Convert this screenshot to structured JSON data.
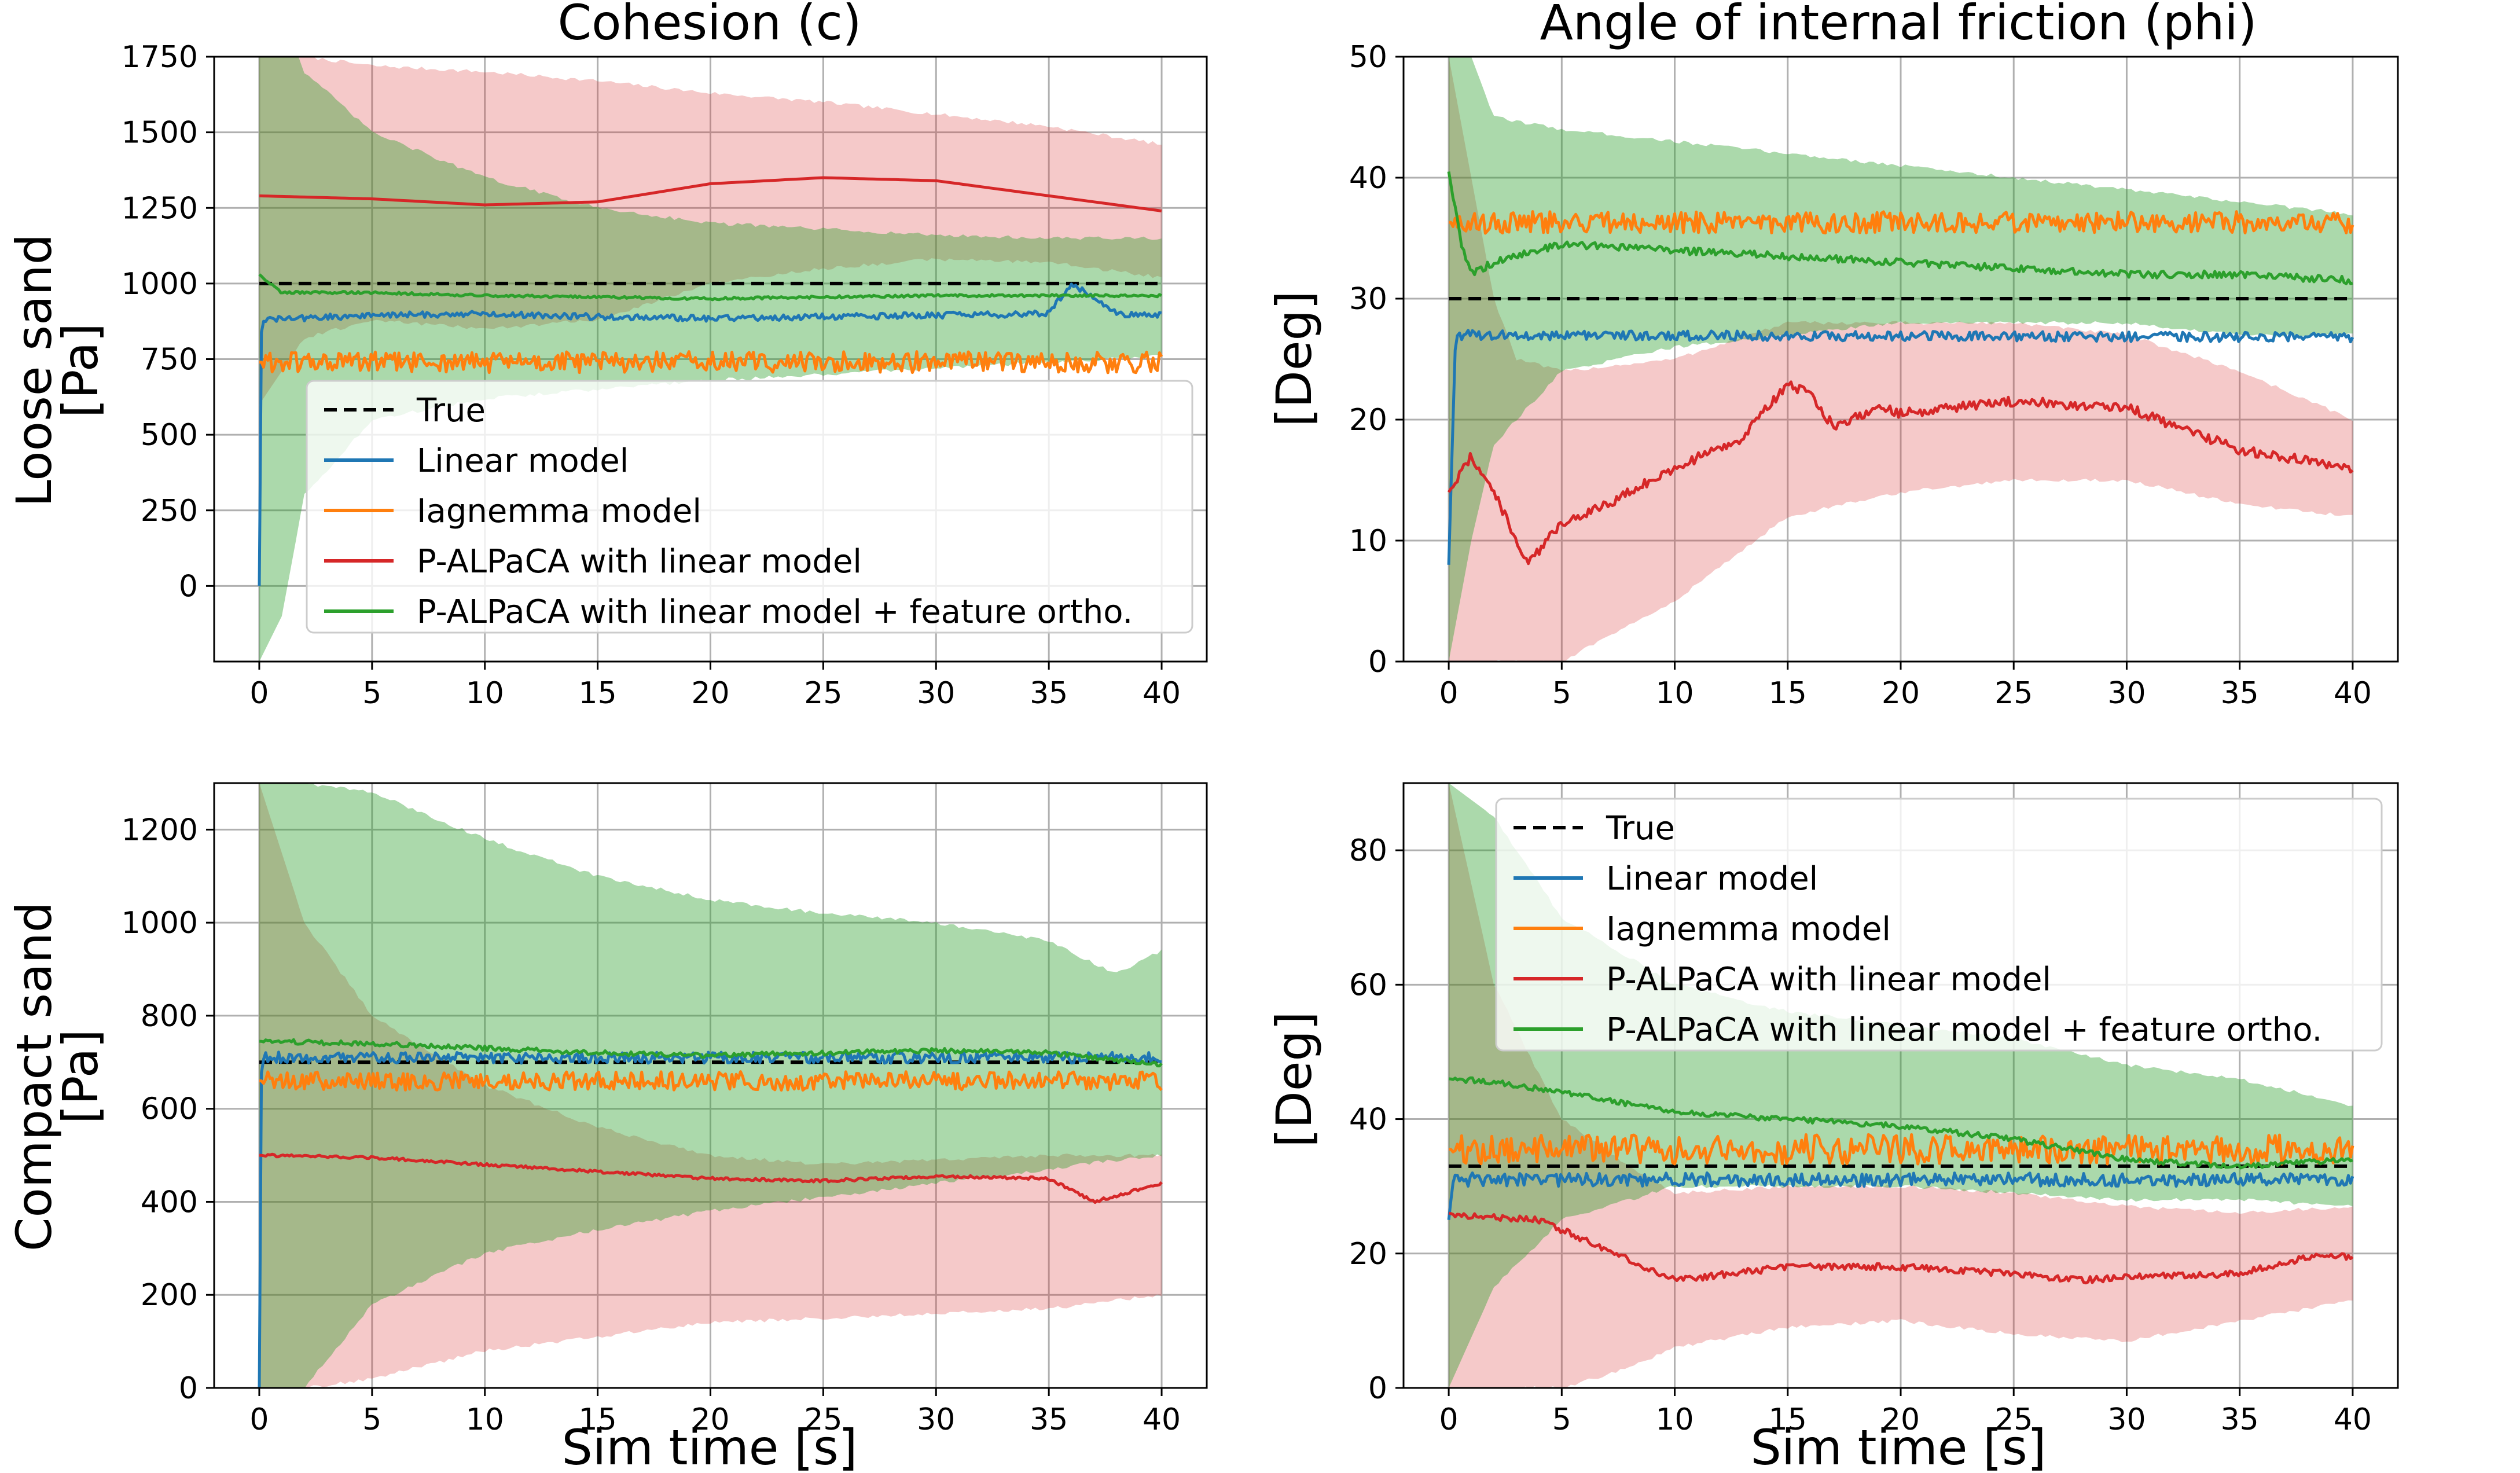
{
  "figure": {
    "xlabel": "Sim time [s]",
    "columns": [
      {
        "title": "Cohesion (c)"
      },
      {
        "title": "Angle of internal friction (phi)"
      }
    ],
    "rows": [
      {
        "label_line1": "Loose sand",
        "label_line2": "[Pa]",
        "right_ylabel": "[Deg]"
      },
      {
        "label_line1": "Compact sand",
        "label_line2": "[Pa]",
        "right_ylabel": "[Deg]"
      }
    ]
  },
  "legend": [
    {
      "label": "True",
      "color": "#000000",
      "dash": true
    },
    {
      "label": "Linear model",
      "color": "#1f77b4",
      "dash": false
    },
    {
      "label": "Iagnemma model",
      "color": "#ff7f0e",
      "dash": false
    },
    {
      "label": "P-ALPaCA with linear model",
      "color": "#d62728",
      "dash": false
    },
    {
      "label": "P-ALPaCA with linear model + feature ortho.",
      "color": "#2ca02c",
      "dash": false
    }
  ],
  "chart_data": [
    {
      "type": "line",
      "title": "Cohesion (c)",
      "ylabel": "Loose sand [Pa]",
      "xlabel": "",
      "xlim": [
        -2,
        42
      ],
      "ylim": [
        -250,
        1750
      ],
      "xticks": [
        0,
        5,
        10,
        15,
        20,
        25,
        30,
        35,
        40
      ],
      "yticks": [
        0,
        250,
        500,
        750,
        1000,
        1250,
        1500,
        1750
      ],
      "grid": true,
      "legend_position": "lower-right",
      "series": [
        {
          "name": "True",
          "x": [
            0,
            40
          ],
          "y": [
            1000,
            1000
          ]
        },
        {
          "name": "Linear model",
          "x": [
            0,
            0.1,
            5,
            10,
            15,
            20,
            25,
            30,
            35,
            36,
            38,
            40
          ],
          "y": [
            0,
            880,
            895,
            900,
            890,
            885,
            890,
            895,
            900,
            1000,
            900,
            895
          ],
          "noise": 10
        },
        {
          "name": "Iagnemma model",
          "x": [
            0,
            40
          ],
          "y": [
            740,
            740
          ],
          "noise": 35
        },
        {
          "name": "P-ALPaCA with linear model",
          "x": [
            0,
            5,
            10,
            15,
            20,
            25,
            30,
            35,
            40
          ],
          "y": [
            1290,
            1280,
            1260,
            1270,
            1330,
            1350,
            1340,
            1290,
            1240
          ],
          "noise": 0
        },
        {
          "name": "P-ALPaCA with linear model + feature ortho.",
          "x": [
            0,
            1,
            5,
            10,
            15,
            20,
            25,
            30,
            35,
            40
          ],
          "y": [
            1030,
            970,
            970,
            960,
            955,
            950,
            955,
            960,
            960,
            960
          ],
          "noise": 4
        }
      ],
      "bands": [
        {
          "name": "P-ALPaCA with linear model",
          "x": [
            0,
            2,
            5,
            10,
            15,
            20,
            25,
            30,
            35,
            40
          ],
          "upper": [
            2000,
            1750,
            1720,
            1700,
            1670,
            1630,
            1600,
            1560,
            1520,
            1460
          ],
          "lower": [
            600,
            820,
            880,
            850,
            880,
            1000,
            1050,
            1080,
            1070,
            1020
          ]
        },
        {
          "name": "P-ALPaCA with linear model + feature ortho.",
          "x": [
            0,
            1,
            2,
            5,
            10,
            15,
            20,
            25,
            30,
            35,
            40
          ],
          "upper": [
            2000,
            1900,
            1700,
            1500,
            1350,
            1250,
            1200,
            1180,
            1160,
            1150,
            1150
          ],
          "lower": [
            -250,
            -100,
            300,
            550,
            620,
            650,
            680,
            700,
            720,
            740,
            760
          ]
        }
      ]
    },
    {
      "type": "line",
      "title": "Angle of internal friction (phi)",
      "ylabel": "[Deg]",
      "xlabel": "",
      "xlim": [
        -2,
        42
      ],
      "ylim": [
        0,
        50
      ],
      "xticks": [
        0,
        5,
        10,
        15,
        20,
        25,
        30,
        35,
        40
      ],
      "yticks": [
        0,
        10,
        20,
        30,
        40,
        50
      ],
      "grid": true,
      "series": [
        {
          "name": "True",
          "x": [
            0,
            40
          ],
          "y": [
            30,
            30
          ]
        },
        {
          "name": "Linear model",
          "x": [
            0,
            0.3,
            1,
            40
          ],
          "y": [
            8,
            27,
            27,
            26.8
          ],
          "noise": 0.4
        },
        {
          "name": "Iagnemma model",
          "x": [
            0,
            40
          ],
          "y": [
            36.3,
            36.3
          ],
          "noise": 0.9
        },
        {
          "name": "P-ALPaCA with linear model",
          "x": [
            0,
            1,
            2,
            3,
            3.5,
            5,
            7,
            10,
            13,
            15,
            16,
            17,
            19,
            20,
            25,
            30,
            35,
            40
          ],
          "y": [
            14,
            17,
            14,
            10,
            8,
            11.5,
            13,
            16,
            18.5,
            23,
            22,
            19.5,
            21,
            20.5,
            21.5,
            21,
            17.5,
            16
          ],
          "noise": 0.4
        },
        {
          "name": "P-ALPaCA with linear model + feature ortho.",
          "x": [
            0,
            0.5,
            1,
            2,
            5,
            10,
            15,
            20,
            25,
            30,
            35,
            40
          ],
          "y": [
            40.5,
            35,
            32,
            33,
            34.5,
            34,
            33.5,
            33,
            32.5,
            32,
            32,
            31.5
          ],
          "noise": 0.3
        }
      ],
      "bands": [
        {
          "name": "P-ALPaCA with linear model",
          "x": [
            0,
            1,
            2,
            3,
            5,
            10,
            15,
            20,
            25,
            30,
            35,
            40
          ],
          "upper": [
            50,
            40,
            30,
            25,
            24,
            25,
            28,
            28,
            28,
            27,
            24,
            20
          ],
          "lower": [
            0,
            0,
            0,
            0,
            0,
            5,
            12,
            14,
            15,
            15,
            13,
            12
          ]
        },
        {
          "name": "P-ALPaCA with linear model + feature ortho.",
          "x": [
            0,
            1,
            2,
            5,
            10,
            15,
            20,
            25,
            30,
            35,
            40
          ],
          "upper": [
            50,
            50,
            45,
            44,
            43,
            42,
            41,
            40,
            39,
            38,
            37
          ],
          "lower": [
            0,
            10,
            18,
            24,
            26,
            27,
            28,
            28,
            28,
            27,
            27
          ]
        }
      ]
    },
    {
      "type": "line",
      "title": "",
      "ylabel": "Compact sand [Pa]",
      "xlabel": "Sim time [s]",
      "xlim": [
        -2,
        42
      ],
      "ylim": [
        0,
        1300
      ],
      "xticks": [
        0,
        5,
        10,
        15,
        20,
        25,
        30,
        35,
        40
      ],
      "yticks": [
        0,
        200,
        400,
        600,
        800,
        1000,
        1200
      ],
      "grid": true,
      "series": [
        {
          "name": "True",
          "x": [
            0,
            40
          ],
          "y": [
            700,
            700
          ]
        },
        {
          "name": "Linear model",
          "x": [
            0,
            0.1,
            40
          ],
          "y": [
            0,
            710,
            710
          ],
          "noise": 12
        },
        {
          "name": "Iagnemma model",
          "x": [
            0,
            40
          ],
          "y": [
            660,
            660
          ],
          "noise": 20
        },
        {
          "name": "P-ALPaCA with linear model",
          "x": [
            0,
            5,
            10,
            15,
            20,
            25,
            30,
            35,
            37,
            40
          ],
          "y": [
            500,
            495,
            480,
            465,
            450,
            445,
            455,
            450,
            400,
            440
          ],
          "noise": 3
        },
        {
          "name": "P-ALPaCA with linear model + feature ortho.",
          "x": [
            0,
            5,
            10,
            15,
            20,
            25,
            30,
            35,
            40
          ],
          "y": [
            745,
            740,
            730,
            720,
            715,
            720,
            725,
            720,
            695
          ],
          "noise": 5
        }
      ],
      "bands": [
        {
          "name": "P-ALPaCA with linear model",
          "x": [
            0,
            2,
            5,
            10,
            15,
            20,
            25,
            30,
            35,
            40
          ],
          "upper": [
            1300,
            1000,
            800,
            650,
            560,
            500,
            480,
            490,
            500,
            500
          ],
          "lower": [
            0,
            0,
            20,
            80,
            110,
            140,
            150,
            160,
            170,
            200
          ]
        },
        {
          "name": "P-ALPaCA with linear model + feature ortho.",
          "x": [
            0,
            2,
            5,
            10,
            15,
            20,
            25,
            30,
            35,
            38,
            40
          ],
          "upper": [
            1300,
            1300,
            1280,
            1180,
            1100,
            1050,
            1020,
            1000,
            960,
            890,
            940
          ],
          "lower": [
            0,
            0,
            180,
            290,
            340,
            380,
            410,
            440,
            470,
            490,
            500
          ]
        }
      ]
    },
    {
      "type": "line",
      "title": "",
      "ylabel": "[Deg]",
      "xlabel": "Sim time [s]",
      "xlim": [
        -2,
        42
      ],
      "ylim": [
        0,
        90
      ],
      "xticks": [
        0,
        5,
        10,
        15,
        20,
        25,
        30,
        35,
        40
      ],
      "yticks": [
        0,
        20,
        40,
        60,
        80
      ],
      "grid": true,
      "legend_position": "upper-right",
      "series": [
        {
          "name": "True",
          "x": [
            0,
            40
          ],
          "y": [
            33,
            33
          ]
        },
        {
          "name": "Linear model",
          "x": [
            0,
            0.2,
            40
          ],
          "y": [
            25,
            31,
            31
          ],
          "noise": 1.0
        },
        {
          "name": "Iagnemma model",
          "x": [
            0,
            40
          ],
          "y": [
            35.5,
            35.5
          ],
          "noise": 2.2
        },
        {
          "name": "P-ALPaCA with linear model",
          "x": [
            0,
            1,
            4,
            6,
            8,
            10,
            15,
            20,
            25,
            28,
            30,
            35,
            38,
            40
          ],
          "y": [
            26,
            25.5,
            25,
            22,
            19,
            16,
            18,
            18,
            17,
            16,
            16.5,
            17,
            19.5,
            19.5
          ],
          "noise": 0.5
        },
        {
          "name": "P-ALPaCA with linear model + feature ortho.",
          "x": [
            0,
            2,
            5,
            10,
            15,
            20,
            25,
            30,
            35,
            40
          ],
          "y": [
            46,
            45.5,
            44,
            41,
            40,
            39,
            37,
            34,
            33,
            34
          ],
          "noise": 0.4
        }
      ],
      "bands": [
        {
          "name": "P-ALPaCA with linear model",
          "x": [
            0,
            2,
            5,
            8,
            10,
            15,
            20,
            25,
            30,
            35,
            40
          ],
          "upper": [
            90,
            60,
            40,
            33,
            29,
            30,
            30,
            29,
            27,
            26,
            27
          ],
          "lower": [
            0,
            0,
            0,
            3,
            6,
            9,
            10,
            8,
            7,
            10,
            13
          ]
        },
        {
          "name": "P-ALPaCA with linear model + feature ortho.",
          "x": [
            0,
            2,
            5,
            10,
            15,
            20,
            25,
            30,
            35,
            40
          ],
          "upper": [
            90,
            85,
            70,
            60,
            56,
            54,
            52,
            48,
            46,
            42
          ],
          "lower": [
            0,
            15,
            25,
            30,
            30,
            30,
            29,
            28,
            28,
            27
          ]
        }
      ]
    }
  ]
}
